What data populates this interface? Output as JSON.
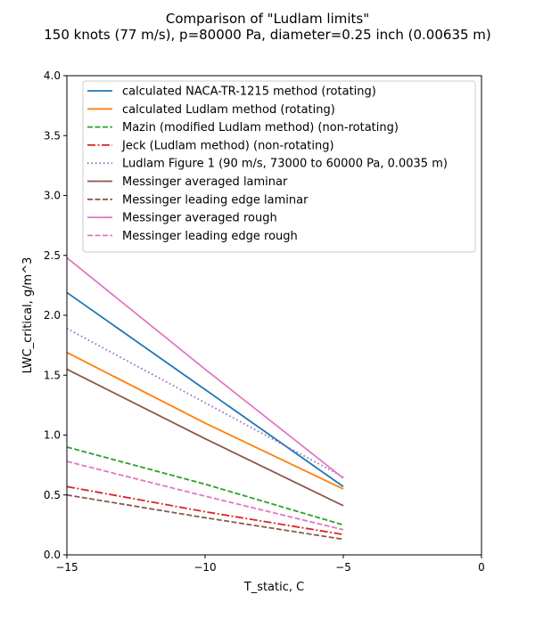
{
  "chart_data": {
    "type": "line",
    "title": "Comparison of \"Ludlam limits\"",
    "subtitle": "150 knots (77 m/s), p=80000 Pa, diameter=0.25 inch (0.00635 m)",
    "xlabel": "T_static, C",
    "ylabel": "LWC_critical, g/m^3",
    "xlim": [
      -15,
      0
    ],
    "ylim": [
      0,
      4.0
    ],
    "xticks": [
      -15,
      -10,
      -5,
      0
    ],
    "xtick_labels": [
      "−15",
      "−10",
      "−5",
      "0"
    ],
    "yticks": [
      0,
      0.5,
      1.0,
      1.5,
      2.0,
      2.5,
      3.0,
      3.5,
      4.0
    ],
    "ytick_labels": [
      "0.0",
      "0.5",
      "1.0",
      "1.5",
      "2.0",
      "2.5",
      "3.0",
      "3.5",
      "4.0"
    ],
    "grid": false,
    "legend_position": "top-right",
    "x": [
      -15,
      -10,
      -5
    ],
    "series": [
      {
        "name": "calculated NACA-TR-1215 method (rotating)",
        "color": "#1f77b4",
        "style": "solid",
        "values": [
          2.19,
          1.38,
          0.57
        ]
      },
      {
        "name": "calculated Ludlam method (rotating)",
        "color": "#ff7f0e",
        "style": "solid",
        "values": [
          1.69,
          1.1,
          0.55
        ]
      },
      {
        "name": "Mazin (modified Ludlam method) (non-rotating)",
        "color": "#2ca02c",
        "style": "dashed",
        "values": [
          0.9,
          0.59,
          0.25
        ]
      },
      {
        "name": "Jeck (Ludlam method) (non-rotating)",
        "color": "#d62728",
        "style": "dashdot",
        "values": [
          0.57,
          0.36,
          0.17
        ]
      },
      {
        "name": "Ludlam Figure 1 (90 m/s, 73000 to 60000 Pa, 0.0035 m)",
        "color": "#9467bd",
        "style": "dotted",
        "values": [
          1.89,
          1.27,
          0.65
        ]
      },
      {
        "name": "Messinger averaged laminar",
        "color": "#8c564b",
        "style": "solid",
        "values": [
          1.55,
          0.97,
          0.41
        ]
      },
      {
        "name": "Messinger leading edge laminar",
        "color": "#8c564b",
        "style": "dashed",
        "values": [
          0.5,
          0.31,
          0.13
        ]
      },
      {
        "name": "Messinger averaged rough",
        "color": "#e377c2",
        "style": "solid",
        "values": [
          2.48,
          1.55,
          0.64
        ]
      },
      {
        "name": "Messinger leading edge rough",
        "color": "#e377c2",
        "style": "dashed",
        "values": [
          0.78,
          0.49,
          0.21
        ]
      }
    ]
  }
}
